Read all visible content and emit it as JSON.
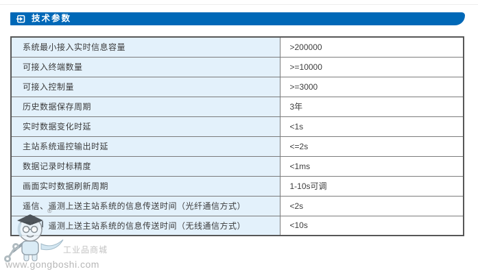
{
  "header": {
    "title": "技术参数",
    "icon": "arrow-right-box-icon"
  },
  "table": {
    "rows": [
      {
        "label": "系统最小接入实时信息容量",
        "value": ">200000"
      },
      {
        "label": "可接入终端数量",
        "value": ">=10000"
      },
      {
        "label": "可接入控制量",
        "value": ">=3000"
      },
      {
        "label": "历史数据保存周期",
        "value": "3年"
      },
      {
        "label": "实时数据变化时延",
        "value": "<1s"
      },
      {
        "label": "主站系统遥控输出时延",
        "value": "<=2s"
      },
      {
        "label": "数据记录时标精度",
        "value": "<1ms"
      },
      {
        "label": "画面实时数据刷新周期",
        "value": "1-10s可调"
      },
      {
        "label": "遥信、遥测上送主站系统的信息传送时间（光纤通信方式）",
        "value": "<2s"
      },
      {
        "label": "遥信、遥测上送主站系统的信息传送时间（无线通信方式）",
        "value": "<10s"
      }
    ]
  },
  "watermark": {
    "registered_mark": "®",
    "site_name": "工业品商城",
    "site_url": "www.gongboshi.com",
    "mascot": "gongboshi-mascot-icon"
  },
  "colors": {
    "header_bar": "#0068b7",
    "label_cell_bg": "#e3f1fb",
    "value_cell_bg": "#ffffff",
    "table_border": "#565656",
    "cell_border": "#7a7a7a",
    "cell_text": "#3c3c3c",
    "watermark_text": "#bdbdbd"
  }
}
